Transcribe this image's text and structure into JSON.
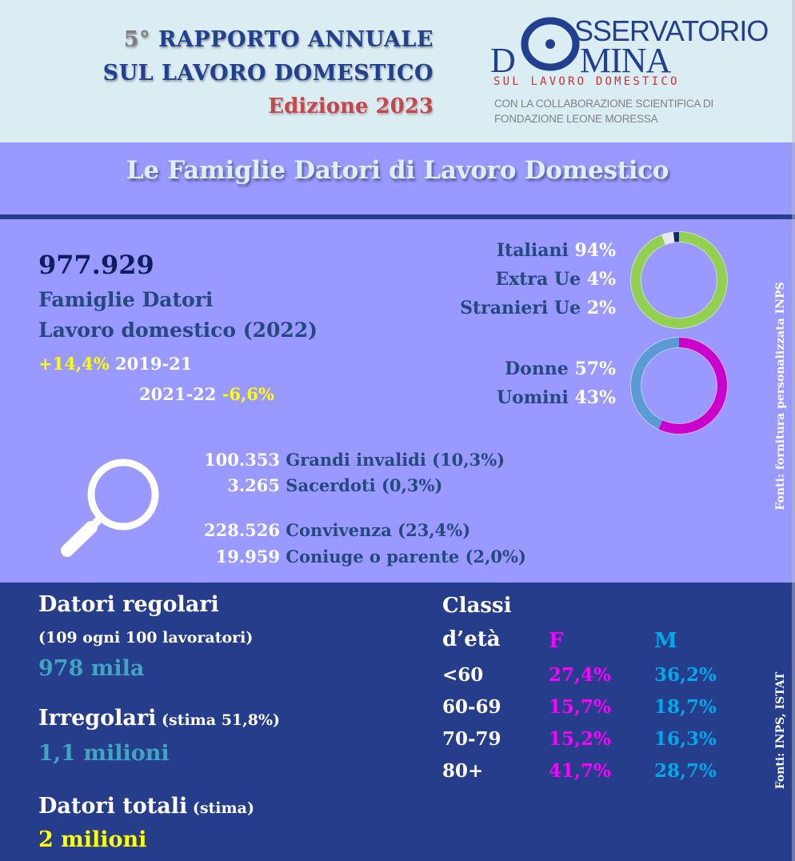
{
  "header": {
    "title_number": "5°",
    "title_line1_rest": " RAPPORTO ANNUALE",
    "title_line2": "SUL LAVORO DOMESTICO",
    "edition": "Edizione 2023",
    "logo": {
      "o_letter_rest": "SSERVATORIO",
      "d_letter": "D",
      "mina": "MINA",
      "subtitle": "SUL LAVORO DOMESTICO",
      "collab_line1": "CON LA COLLABORAZIONE SCIENTIFICA DI",
      "collab_line2": "FONDAZIONE LEONE MORESSA"
    }
  },
  "section_title": "Le Famiglie Datori di Lavoro Domestico",
  "families": {
    "total": "977.929",
    "label_line1": "Famiglie Datori",
    "label_line2": "Lavoro domestico (2022)",
    "trend1_pct": "+14,4%",
    "trend1_period": " 2019-21",
    "trend2_period": "2021-22 ",
    "trend2_pct": "-6,6%"
  },
  "nationality": {
    "items": [
      {
        "label": "Italiani ",
        "pct": "94%",
        "value": 94,
        "color": "#92d050"
      },
      {
        "label": "Extra Ue ",
        "pct": "4%",
        "value": 4,
        "color": "#e8e8ee"
      },
      {
        "label": "Stranieri Ue ",
        "pct": "2%",
        "value": 2,
        "color": "#0d2a66"
      }
    ]
  },
  "gender": {
    "items": [
      {
        "label": "Donne ",
        "pct": "57%",
        "value": 57,
        "color": "#cc00cc"
      },
      {
        "label": "Uomini ",
        "pct": "43%",
        "value": 43,
        "color": "#5b9bd5"
      }
    ]
  },
  "subgroups": [
    {
      "number": "100.353",
      "label": " Grandi invalidi (10,3%)"
    },
    {
      "number": "3.265",
      "label": " Sacerdoti (0,3%)"
    },
    {
      "number": "228.526",
      "label": " Convivenza (23,4%)"
    },
    {
      "number": "19.959",
      "label": " Coniuge o parente (2,0%)"
    }
  ],
  "source_top": "Fonti: fornitura personalizzata INPS",
  "employers": {
    "regular_title": "Datori regolari",
    "regular_sub": "(109 ogni 100 lavoratori)",
    "regular_value": "978 mila",
    "irregular_title": "Irregolari",
    "irregular_sub": " (stima 51,8%)",
    "irregular_value": "1,1 milioni",
    "total_title": "Datori totali",
    "total_sub": " (stima)",
    "total_value": "2 milioni"
  },
  "age_classes": {
    "title_line1": "Classi",
    "title_line2": "d’età",
    "col_f": "F",
    "col_m": "M",
    "rows": [
      {
        "label": "<60",
        "f": "27,4%",
        "m": "36,2%"
      },
      {
        "label": "60-69",
        "f": "15,7%",
        "m": "18,7%"
      },
      {
        "label": "70-79",
        "f": "15,2%",
        "m": "16,3%"
      },
      {
        "label": "80+",
        "f": "41,7%",
        "m": "28,7%"
      }
    ]
  },
  "source_bottom": "Fonti: INPS, ISTAT",
  "chart_data": [
    {
      "type": "pie",
      "title": "Nazionalità famiglie datori",
      "categories": [
        "Italiani",
        "Extra Ue",
        "Stranieri Ue"
      ],
      "values": [
        94,
        4,
        2
      ],
      "unit": "%",
      "style": "donut"
    },
    {
      "type": "pie",
      "title": "Genere datori",
      "categories": [
        "Donne",
        "Uomini"
      ],
      "values": [
        57,
        43
      ],
      "unit": "%",
      "style": "donut"
    },
    {
      "type": "table",
      "title": "Classi d'età",
      "categories": [
        "<60",
        "60-69",
        "70-79",
        "80+"
      ],
      "series": [
        {
          "name": "F",
          "values": [
            27.4,
            15.7,
            15.2,
            41.7
          ]
        },
        {
          "name": "M",
          "values": [
            36.2,
            18.7,
            16.3,
            28.7
          ]
        }
      ],
      "unit": "%"
    }
  ]
}
